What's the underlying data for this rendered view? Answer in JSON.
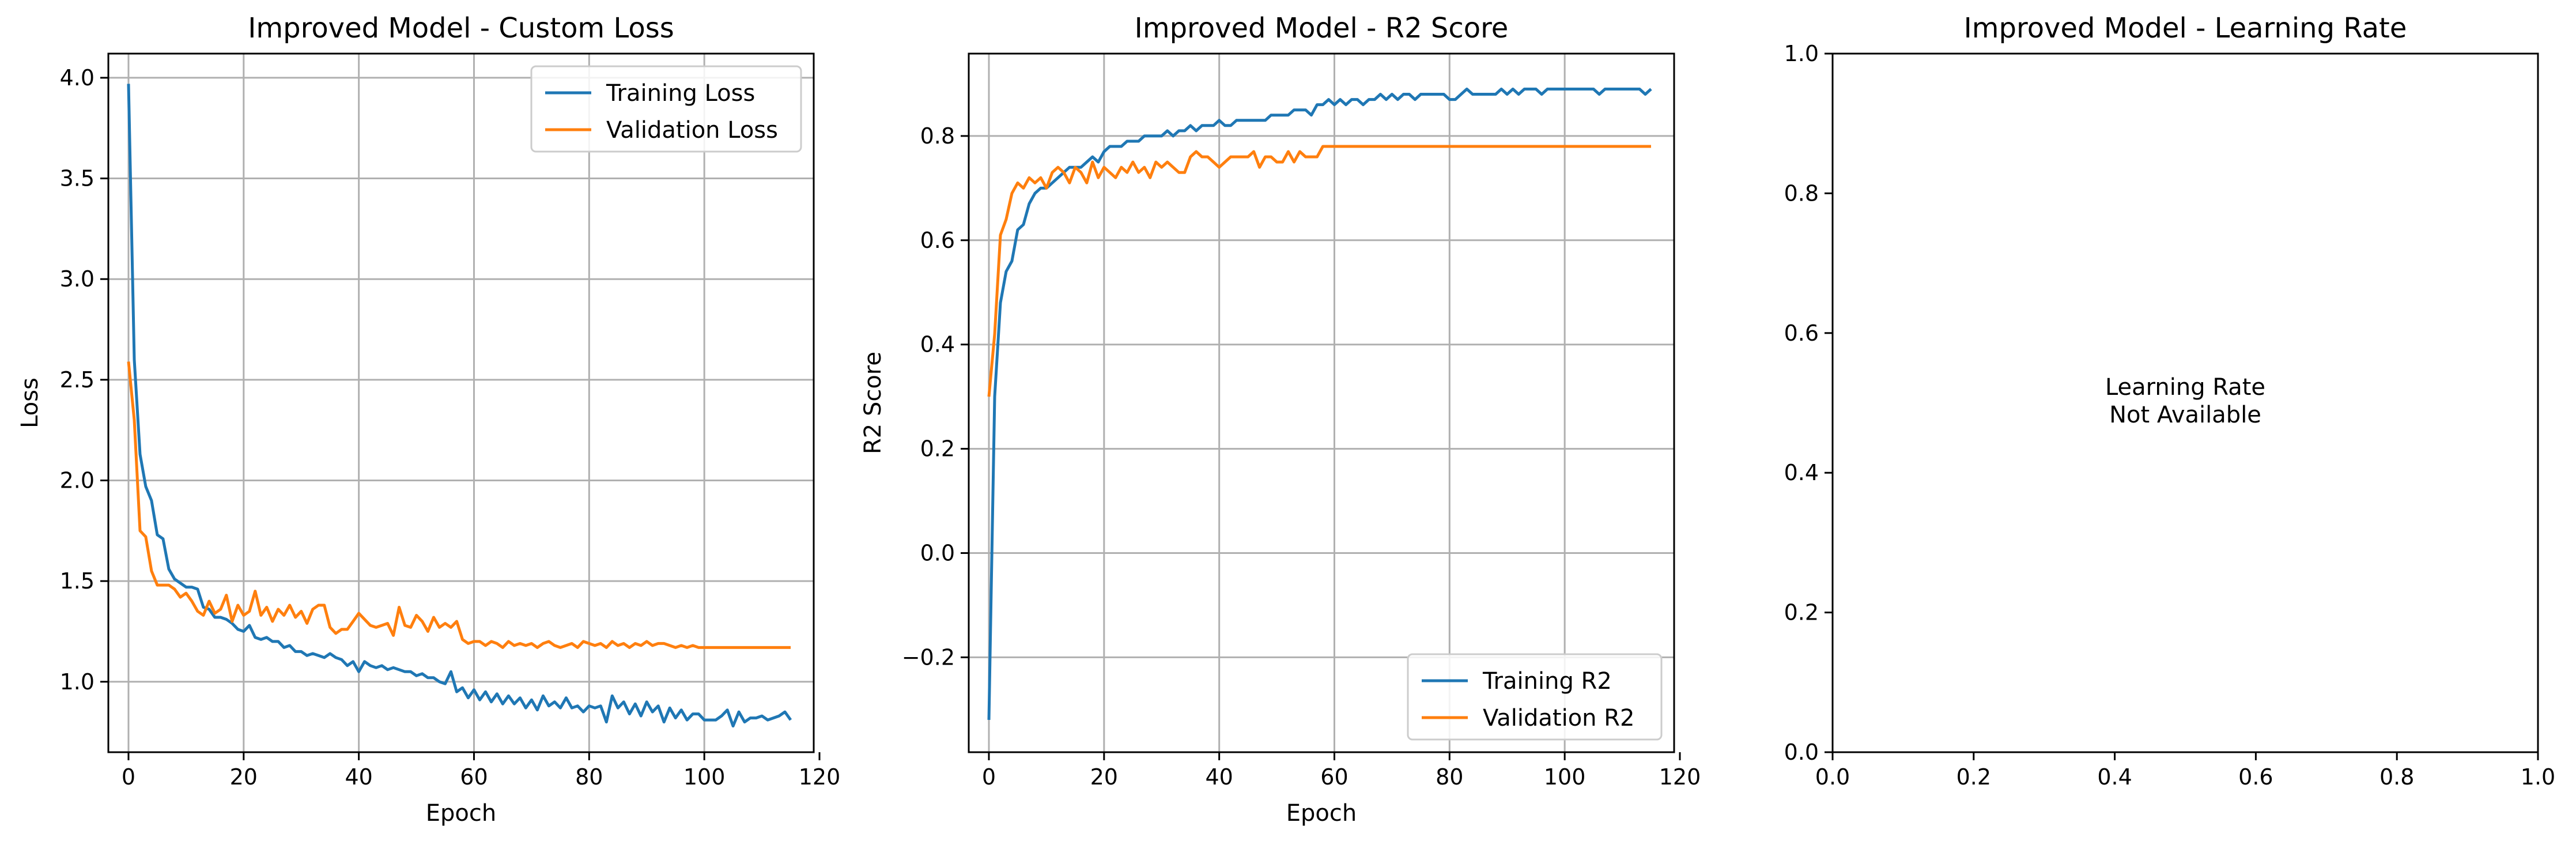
{
  "colors": {
    "training": "#1f77b4",
    "validation": "#ff7f0e"
  },
  "chart_data": [
    {
      "type": "line",
      "title": "Improved Model - Custom Loss",
      "xlabel": "Epoch",
      "ylabel": "Loss",
      "xlim": [
        -3.5,
        119
      ],
      "ylim": [
        0.65,
        4.12
      ],
      "xticks": [
        0,
        20,
        40,
        60,
        80,
        100,
        120
      ],
      "xtick_labels": [
        "0",
        "20",
        "40",
        "60",
        "80",
        "100",
        "120"
      ],
      "yticks": [
        1.0,
        1.5,
        2.0,
        2.5,
        3.0,
        3.5,
        4.0
      ],
      "ytick_labels": [
        "1.0",
        "1.5",
        "2.0",
        "2.5",
        "3.0",
        "3.5",
        "4.0"
      ],
      "grid": true,
      "legend_placement": "top-right",
      "series": [
        {
          "name": "Training Loss",
          "color": "#1f77b4",
          "x": [
            0,
            1,
            2,
            3,
            4,
            5,
            6,
            7,
            8,
            9,
            10,
            11,
            12,
            13,
            14,
            15,
            16,
            17,
            18,
            19,
            20,
            21,
            22,
            23,
            24,
            25,
            26,
            27,
            28,
            29,
            30,
            31,
            32,
            33,
            34,
            35,
            36,
            37,
            38,
            39,
            40,
            41,
            42,
            43,
            44,
            45,
            46,
            47,
            48,
            49,
            50,
            51,
            52,
            53,
            54,
            55,
            56,
            57,
            58,
            59,
            60,
            61,
            62,
            63,
            64,
            65,
            66,
            67,
            68,
            69,
            70,
            71,
            72,
            73,
            74,
            75,
            76,
            77,
            78,
            79,
            80,
            81,
            82,
            83,
            84,
            85,
            86,
            87,
            88,
            89,
            90,
            91,
            92,
            93,
            94,
            95,
            96,
            97,
            98,
            99,
            100,
            101,
            102,
            103,
            104,
            105,
            106,
            107,
            108,
            109,
            110,
            111,
            112,
            113,
            114,
            115
          ],
          "y": [
            3.97,
            2.6,
            2.13,
            1.97,
            1.9,
            1.73,
            1.71,
            1.56,
            1.51,
            1.49,
            1.47,
            1.47,
            1.46,
            1.37,
            1.36,
            1.32,
            1.32,
            1.31,
            1.29,
            1.26,
            1.25,
            1.28,
            1.22,
            1.21,
            1.22,
            1.2,
            1.2,
            1.17,
            1.18,
            1.15,
            1.15,
            1.13,
            1.14,
            1.13,
            1.12,
            1.14,
            1.12,
            1.11,
            1.08,
            1.1,
            1.05,
            1.1,
            1.08,
            1.07,
            1.08,
            1.06,
            1.07,
            1.06,
            1.05,
            1.05,
            1.03,
            1.04,
            1.02,
            1.02,
            1.0,
            0.99,
            1.05,
            0.95,
            0.97,
            0.92,
            0.96,
            0.91,
            0.95,
            0.9,
            0.94,
            0.89,
            0.93,
            0.89,
            0.92,
            0.87,
            0.91,
            0.86,
            0.93,
            0.88,
            0.9,
            0.87,
            0.92,
            0.87,
            0.88,
            0.85,
            0.88,
            0.87,
            0.88,
            0.8,
            0.93,
            0.87,
            0.9,
            0.84,
            0.89,
            0.83,
            0.9,
            0.85,
            0.88,
            0.8,
            0.87,
            0.82,
            0.86,
            0.81,
            0.84,
            0.84,
            0.81,
            0.81,
            0.81,
            0.83,
            0.86,
            0.78,
            0.85,
            0.8,
            0.82,
            0.82,
            0.83,
            0.81,
            0.82,
            0.83,
            0.85,
            0.81
          ]
        },
        {
          "name": "Validation Loss",
          "color": "#ff7f0e",
          "x": [
            0,
            1,
            2,
            3,
            4,
            5,
            6,
            7,
            8,
            9,
            10,
            11,
            12,
            13,
            14,
            15,
            16,
            17,
            18,
            19,
            20,
            21,
            22,
            23,
            24,
            25,
            26,
            27,
            28,
            29,
            30,
            31,
            32,
            33,
            34,
            35,
            36,
            37,
            38,
            39,
            40,
            41,
            42,
            43,
            44,
            45,
            46,
            47,
            48,
            49,
            50,
            51,
            52,
            53,
            54,
            55,
            56,
            57,
            58,
            59,
            60,
            61,
            62,
            63,
            64,
            65,
            66,
            67,
            68,
            69,
            70,
            71,
            72,
            73,
            74,
            75,
            76,
            77,
            78,
            79,
            80,
            81,
            82,
            83,
            84,
            85,
            86,
            87,
            88,
            89,
            90,
            91,
            92,
            93,
            94,
            95,
            96,
            97,
            98,
            99,
            100,
            101,
            102,
            103,
            104,
            105,
            106,
            107,
            108,
            109,
            110,
            111,
            112,
            113,
            114,
            115
          ],
          "y": [
            2.59,
            2.3,
            1.75,
            1.72,
            1.55,
            1.48,
            1.48,
            1.48,
            1.46,
            1.42,
            1.44,
            1.4,
            1.35,
            1.33,
            1.4,
            1.34,
            1.36,
            1.43,
            1.3,
            1.38,
            1.33,
            1.35,
            1.45,
            1.33,
            1.37,
            1.3,
            1.36,
            1.33,
            1.38,
            1.32,
            1.35,
            1.29,
            1.36,
            1.38,
            1.38,
            1.27,
            1.24,
            1.26,
            1.26,
            1.3,
            1.34,
            1.31,
            1.28,
            1.27,
            1.28,
            1.29,
            1.23,
            1.37,
            1.28,
            1.27,
            1.33,
            1.3,
            1.25,
            1.32,
            1.27,
            1.29,
            1.27,
            1.3,
            1.21,
            1.19,
            1.2,
            1.2,
            1.18,
            1.2,
            1.19,
            1.17,
            1.2,
            1.18,
            1.19,
            1.18,
            1.19,
            1.17,
            1.19,
            1.2,
            1.18,
            1.17,
            1.18,
            1.19,
            1.17,
            1.2,
            1.19,
            1.18,
            1.19,
            1.17,
            1.2,
            1.18,
            1.19,
            1.17,
            1.19,
            1.18,
            1.2,
            1.18,
            1.19,
            1.19,
            1.18,
            1.17,
            1.18,
            1.17,
            1.18,
            1.17,
            1.17,
            1.17,
            1.17,
            1.17,
            1.17,
            1.17,
            1.17,
            1.17,
            1.17,
            1.17,
            1.17,
            1.17,
            1.17,
            1.17,
            1.17,
            1.17
          ]
        }
      ]
    },
    {
      "type": "line",
      "title": "Improved Model - R2 Score",
      "xlabel": "Epoch",
      "ylabel": "R2 Score",
      "xlim": [
        -3.5,
        119
      ],
      "ylim": [
        -0.382,
        0.958
      ],
      "xticks": [
        0,
        20,
        40,
        60,
        80,
        100,
        120
      ],
      "xtick_labels": [
        "0",
        "20",
        "40",
        "60",
        "80",
        "100",
        "120"
      ],
      "yticks": [
        -0.2,
        0.0,
        0.2,
        0.4,
        0.6,
        0.8
      ],
      "ytick_labels": [
        "−0.2",
        "0.0",
        "0.2",
        "0.4",
        "0.6",
        "0.8"
      ],
      "grid": true,
      "legend_placement": "bottom-right",
      "series": [
        {
          "name": "Training R2",
          "color": "#1f77b4",
          "x": [
            0,
            1,
            2,
            3,
            4,
            5,
            6,
            7,
            8,
            9,
            10,
            11,
            12,
            13,
            14,
            15,
            16,
            17,
            18,
            19,
            20,
            21,
            22,
            23,
            24,
            25,
            26,
            27,
            28,
            29,
            30,
            31,
            32,
            33,
            34,
            35,
            36,
            37,
            38,
            39,
            40,
            41,
            42,
            43,
            44,
            45,
            46,
            47,
            48,
            49,
            50,
            51,
            52,
            53,
            54,
            55,
            56,
            57,
            58,
            59,
            60,
            61,
            62,
            63,
            64,
            65,
            66,
            67,
            68,
            69,
            70,
            71,
            72,
            73,
            74,
            75,
            76,
            77,
            78,
            79,
            80,
            81,
            82,
            83,
            84,
            85,
            86,
            87,
            88,
            89,
            90,
            91,
            92,
            93,
            94,
            95,
            96,
            97,
            98,
            99,
            100,
            101,
            102,
            103,
            104,
            105,
            106,
            107,
            108,
            109,
            110,
            111,
            112,
            113,
            114,
            115
          ],
          "y": [
            -0.32,
            0.3,
            0.48,
            0.54,
            0.56,
            0.62,
            0.63,
            0.67,
            0.69,
            0.7,
            0.7,
            0.71,
            0.72,
            0.73,
            0.74,
            0.74,
            0.74,
            0.75,
            0.76,
            0.75,
            0.77,
            0.78,
            0.78,
            0.78,
            0.79,
            0.79,
            0.79,
            0.8,
            0.8,
            0.8,
            0.8,
            0.81,
            0.8,
            0.81,
            0.81,
            0.82,
            0.81,
            0.82,
            0.82,
            0.82,
            0.83,
            0.82,
            0.82,
            0.83,
            0.83,
            0.83,
            0.83,
            0.83,
            0.83,
            0.84,
            0.84,
            0.84,
            0.84,
            0.85,
            0.85,
            0.85,
            0.84,
            0.86,
            0.86,
            0.87,
            0.86,
            0.87,
            0.86,
            0.87,
            0.87,
            0.86,
            0.87,
            0.87,
            0.88,
            0.87,
            0.88,
            0.87,
            0.88,
            0.88,
            0.87,
            0.88,
            0.88,
            0.88,
            0.88,
            0.88,
            0.87,
            0.87,
            0.88,
            0.89,
            0.88,
            0.88,
            0.88,
            0.88,
            0.88,
            0.89,
            0.88,
            0.89,
            0.88,
            0.89,
            0.89,
            0.89,
            0.88,
            0.89,
            0.89,
            0.89,
            0.89,
            0.89,
            0.89,
            0.89,
            0.89,
            0.89,
            0.88,
            0.89,
            0.89,
            0.89,
            0.89,
            0.89,
            0.89,
            0.89,
            0.88,
            0.89
          ]
        },
        {
          "name": "Validation R2",
          "color": "#ff7f0e",
          "x": [
            0,
            1,
            2,
            3,
            4,
            5,
            6,
            7,
            8,
            9,
            10,
            11,
            12,
            13,
            14,
            15,
            16,
            17,
            18,
            19,
            20,
            21,
            22,
            23,
            24,
            25,
            26,
            27,
            28,
            29,
            30,
            31,
            32,
            33,
            34,
            35,
            36,
            37,
            38,
            39,
            40,
            41,
            42,
            43,
            44,
            45,
            46,
            47,
            48,
            49,
            50,
            51,
            52,
            53,
            54,
            55,
            56,
            57,
            58,
            59,
            60,
            61,
            62,
            63,
            64,
            65,
            66,
            67,
            68,
            69,
            70,
            71,
            72,
            73,
            74,
            75,
            76,
            77,
            78,
            79,
            80,
            81,
            82,
            83,
            84,
            85,
            86,
            87,
            88,
            89,
            90,
            91,
            92,
            93,
            94,
            95,
            96,
            97,
            98,
            99,
            100,
            101,
            102,
            103,
            104,
            105,
            106,
            107,
            108,
            109,
            110,
            111,
            112,
            113,
            114,
            115
          ],
          "y": [
            0.3,
            0.42,
            0.61,
            0.64,
            0.69,
            0.71,
            0.7,
            0.72,
            0.71,
            0.72,
            0.7,
            0.73,
            0.74,
            0.73,
            0.71,
            0.74,
            0.73,
            0.71,
            0.75,
            0.72,
            0.74,
            0.73,
            0.72,
            0.74,
            0.73,
            0.75,
            0.73,
            0.74,
            0.72,
            0.75,
            0.74,
            0.75,
            0.74,
            0.73,
            0.73,
            0.76,
            0.77,
            0.76,
            0.76,
            0.75,
            0.74,
            0.75,
            0.76,
            0.76,
            0.76,
            0.76,
            0.77,
            0.74,
            0.76,
            0.76,
            0.75,
            0.75,
            0.77,
            0.75,
            0.77,
            0.76,
            0.76,
            0.76,
            0.78,
            0.78,
            0.78,
            0.78,
            0.78,
            0.78,
            0.78,
            0.78,
            0.78,
            0.78,
            0.78,
            0.78,
            0.78,
            0.78,
            0.78,
            0.78,
            0.78,
            0.78,
            0.78,
            0.78,
            0.78,
            0.78,
            0.78,
            0.78,
            0.78,
            0.78,
            0.78,
            0.78,
            0.78,
            0.78,
            0.78,
            0.78,
            0.78,
            0.78,
            0.78,
            0.78,
            0.78,
            0.78,
            0.78,
            0.78,
            0.78,
            0.78,
            0.78,
            0.78,
            0.78,
            0.78,
            0.78,
            0.78,
            0.78,
            0.78,
            0.78,
            0.78,
            0.78,
            0.78,
            0.78,
            0.78,
            0.78,
            0.78
          ]
        }
      ]
    },
    {
      "type": "line",
      "title": "Improved Model - Learning Rate",
      "xlabel": "",
      "ylabel": "",
      "xlim": [
        0,
        1
      ],
      "ylim": [
        0,
        1
      ],
      "xticks": [
        0,
        0.2,
        0.4,
        0.6,
        0.8,
        1.0
      ],
      "xtick_labels": [
        "0.0",
        "0.2",
        "0.4",
        "0.6",
        "0.8",
        "1.0"
      ],
      "yticks": [
        0,
        0.2,
        0.4,
        0.6,
        0.8,
        1.0
      ],
      "ytick_labels": [
        "0.0",
        "0.2",
        "0.4",
        "0.6",
        "0.8",
        "1.0"
      ],
      "grid": false,
      "annotation": [
        "Learning Rate",
        "Not Available"
      ],
      "series": []
    }
  ]
}
